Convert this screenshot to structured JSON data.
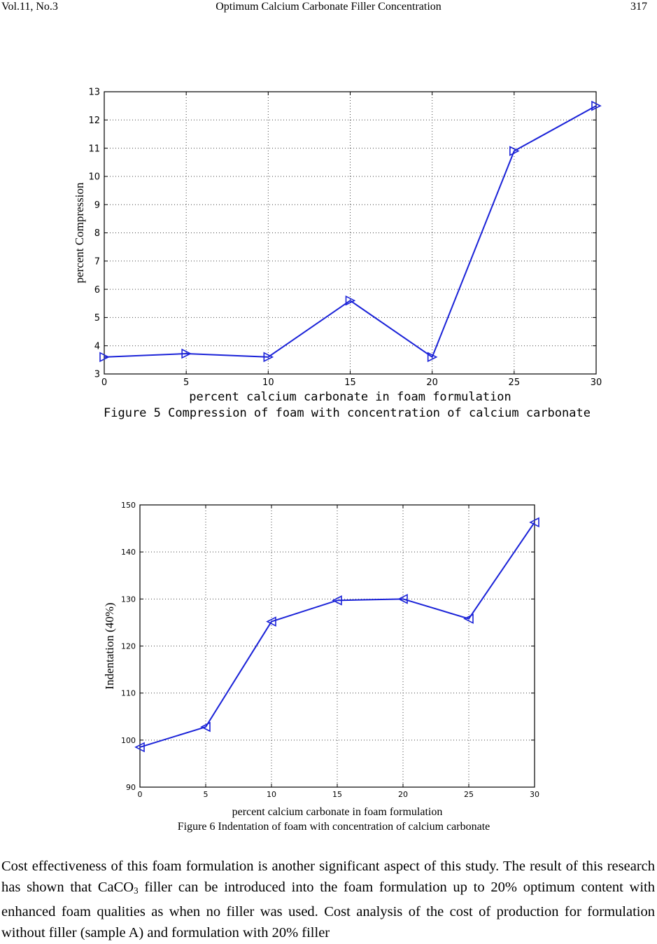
{
  "header": {
    "left": "Vol.11, No.3",
    "center": "Optimum Calcium Carbonate Filler Concentration",
    "right": "317"
  },
  "figures": [
    {
      "caption": "Figure 5 Compression of foam with concentration of calcium carbonate"
    },
    {
      "caption": "Figure 6 Indentation of foam with concentration of calcium carbonate"
    }
  ],
  "chart_data": [
    {
      "type": "line",
      "title": "",
      "xlabel": "percent calcium carbonate in foam formulation",
      "ylabel": "percent Compression",
      "xlim": [
        0,
        30
      ],
      "ylim": [
        3,
        13
      ],
      "xticks": [
        "0",
        "5",
        "10",
        "15",
        "20",
        "25",
        "30"
      ],
      "yticks": [
        "3",
        "4",
        "5",
        "6",
        "7",
        "8",
        "9",
        "10",
        "11",
        "12",
        "13"
      ],
      "grid": true,
      "marker": "triangle-right",
      "color": "#1a22d8",
      "series": [
        {
          "x": [
            0,
            5,
            10,
            15,
            20,
            25,
            30
          ],
          "values": [
            3.6,
            3.72,
            3.6,
            5.6,
            3.6,
            10.9,
            12.5
          ]
        }
      ]
    },
    {
      "type": "line",
      "title": "",
      "xlabel": "percent calcium carbonate in foam formulation",
      "ylabel": "Indentation (40%)",
      "xlim": [
        0,
        30
      ],
      "ylim": [
        90,
        150
      ],
      "xticks": [
        "0",
        "5",
        "10",
        "15",
        "20",
        "25",
        "30"
      ],
      "yticks": [
        "90",
        "100",
        "110",
        "120",
        "130",
        "140",
        "150"
      ],
      "grid": true,
      "marker": "triangle-left",
      "color": "#1a22d8",
      "series": [
        {
          "x": [
            0,
            5,
            10,
            15,
            20,
            25,
            30
          ],
          "values": [
            98.5,
            102.8,
            125.2,
            129.7,
            130.0,
            125.8,
            146.3
          ]
        }
      ]
    }
  ],
  "body": {
    "text_before": "Cost effectiveness of this foam formulation is another significant aspect of this study. The result of this research has shown that CaCO",
    "subscript": "3",
    "text_after": " filler can be introduced into the foam formulation up to 20% optimum content with enhanced foam qualities as when no filler was used. Cost analysis of the cost of production for formulation without filler (sample A) and formulation with 20% filler"
  }
}
